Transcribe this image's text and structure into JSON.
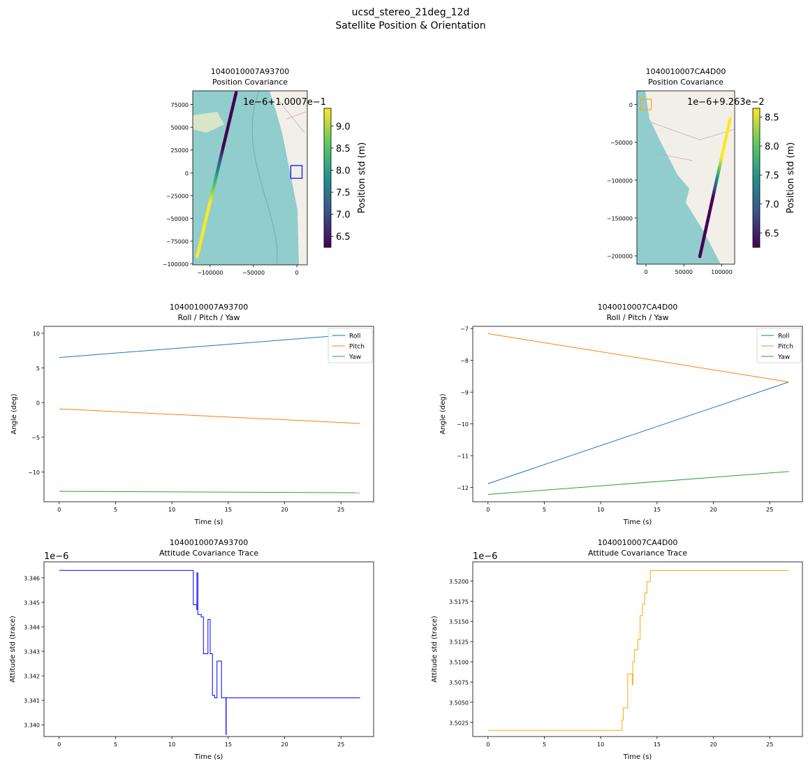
{
  "figure": {
    "title_line1": "ucsd_stereo_21deg_12d",
    "title_line2": "Satellite Position & Orientation"
  },
  "colors": {
    "roll": "#1f77b4",
    "pitch": "#ff7f0e",
    "yaw": "#2ca02c",
    "trace_a": "#0000ff",
    "trace_b": "#ffa500",
    "marker_a": "#0000ff",
    "marker_b": "#ffa500",
    "map_water": "#91cdcc",
    "map_land": "#f2efe9",
    "viridis": [
      "#440154",
      "#3b528b",
      "#21918c",
      "#5ec962",
      "#fde725"
    ]
  },
  "chart_data": [
    {
      "id": "map_a",
      "type": "scatter",
      "title": "1040010007A93700\nPosition Covariance",
      "xlim": [
        -120000,
        12000
      ],
      "ylim": [
        -101000,
        90000
      ],
      "xticks": [
        -100000,
        -50000,
        0
      ],
      "xtick_labels": [
        "−100000",
        "−50000",
        "0"
      ],
      "yticks": [
        -100000,
        -75000,
        -50000,
        -25000,
        0,
        25000,
        50000,
        75000
      ],
      "ytick_labels": [
        "−100000",
        "−75000",
        "−50000",
        "−25000",
        "0",
        "25000",
        "50000",
        "75000"
      ],
      "track_start": [
        -115000,
        -92000
      ],
      "track_end": [
        -70000,
        88000
      ],
      "track_color_t": [
        1.0,
        1.0,
        1.0,
        0.55,
        0.0,
        0.0,
        0.0
      ],
      "marker_box": [
        -7000,
        -6000,
        6000,
        8000
      ],
      "colorbar": {
        "label": "Position std (m)",
        "offset": "1e−6+1.0007e−1",
        "ticks": [
          6.5,
          7.0,
          7.5,
          8.0,
          8.5,
          9.0
        ],
        "tick_labels": [
          "6.5",
          "7.0",
          "7.5",
          "8.0",
          "8.5",
          "9.0"
        ],
        "range": [
          6.25,
          9.4
        ]
      }
    },
    {
      "id": "map_b",
      "type": "scatter",
      "title": "1040010007CA4D00\nPosition Covariance",
      "xlim": [
        -12000,
        117000
      ],
      "ylim": [
        -211000,
        18000
      ],
      "xticks": [
        0,
        50000,
        100000
      ],
      "xtick_labels": [
        "0",
        "50000",
        "100000"
      ],
      "yticks": [
        -200000,
        -150000,
        -100000,
        -50000,
        0
      ],
      "ytick_labels": [
        "−200000",
        "−150000",
        "−100000",
        "−50000",
        "0"
      ],
      "track_start": [
        71000,
        -201000
      ],
      "track_end": [
        111000,
        -19000
      ],
      "track_color_t": [
        0.0,
        0.0,
        0.0,
        0.0,
        0.5,
        1.0,
        1.0,
        1.0
      ],
      "marker_box": [
        -7000,
        -7000,
        7000,
        7000
      ],
      "colorbar": {
        "label": "Position std (m)",
        "offset": "1e−6+9.263e−2",
        "ticks": [
          6.5,
          7.0,
          7.5,
          8.0,
          8.5
        ],
        "tick_labels": [
          "6.5",
          "7.0",
          "7.5",
          "8.0",
          "8.5"
        ],
        "range": [
          6.25,
          8.65
        ]
      }
    },
    {
      "id": "rpy_a",
      "type": "line",
      "title": "1040010007A93700\nRoll / Pitch / Yaw",
      "xlabel": "Time (s)",
      "ylabel": "Angle (deg)",
      "xlim": [
        -1.35,
        27.9
      ],
      "ylim": [
        -14.3,
        11.0
      ],
      "xticks": [
        0,
        5,
        10,
        15,
        20,
        25
      ],
      "xtick_labels": [
        "0",
        "5",
        "10",
        "15",
        "20",
        "25"
      ],
      "yticks": [
        -10,
        -5,
        0,
        5,
        10
      ],
      "ytick_labels": [
        "−10",
        "−5",
        "0",
        "5",
        "10"
      ],
      "legend": "top-right",
      "series": [
        {
          "name": "Roll",
          "x": [
            0,
            26.7
          ],
          "values": [
            6.5,
            9.9
          ]
        },
        {
          "name": "Pitch",
          "x": [
            0,
            26.7
          ],
          "values": [
            -0.9,
            -3.0
          ]
        },
        {
          "name": "Yaw",
          "x": [
            0,
            26.7
          ],
          "values": [
            -12.8,
            -13.0
          ]
        }
      ]
    },
    {
      "id": "rpy_b",
      "type": "line",
      "title": "1040010007CA4D00\nRoll / Pitch / Yaw",
      "xlabel": "Time (s)",
      "ylabel": "Angle (deg)",
      "xlim": [
        -1.35,
        27.9
      ],
      "ylim": [
        -12.45,
        -6.93
      ],
      "xticks": [
        0,
        5,
        10,
        15,
        20,
        25
      ],
      "xtick_labels": [
        "0",
        "5",
        "10",
        "15",
        "20",
        "25"
      ],
      "yticks": [
        -12,
        -11,
        -10,
        -9,
        -8,
        -7
      ],
      "ytick_labels": [
        "−12",
        "−11",
        "−10",
        "−9",
        "−8",
        "−7"
      ],
      "legend": "top-right",
      "series": [
        {
          "name": "Roll",
          "x": [
            0,
            26.7
          ],
          "values": [
            -11.88,
            -8.68
          ]
        },
        {
          "name": "Pitch",
          "x": [
            0,
            26.7
          ],
          "values": [
            -7.16,
            -8.68
          ]
        },
        {
          "name": "Yaw",
          "x": [
            0,
            26.7
          ],
          "values": [
            -12.22,
            -11.5
          ]
        }
      ]
    },
    {
      "id": "trace_a",
      "type": "line",
      "title": "1040010007A93700\nAttitude Covariance Trace",
      "xlabel": "Time (s)",
      "ylabel": "Attitude std (trace)",
      "offset": "1e−6",
      "xlim": [
        -1.35,
        27.9
      ],
      "ylim": [
        3.33952,
        3.34665
      ],
      "xticks": [
        0,
        5,
        10,
        15,
        20,
        25
      ],
      "xtick_labels": [
        "0",
        "5",
        "10",
        "15",
        "20",
        "25"
      ],
      "yticks": [
        3.34,
        3.341,
        3.342,
        3.343,
        3.344,
        3.345,
        3.346
      ],
      "ytick_labels": [
        "3.340",
        "3.341",
        "3.342",
        "3.343",
        "3.344",
        "3.345",
        "3.346"
      ],
      "step": true,
      "series": [
        {
          "x": [
            0,
            11.9,
            11.9,
            12.2,
            12.2,
            12.22,
            12.22,
            12.3,
            12.3,
            12.6,
            12.6,
            12.8,
            12.8,
            13.2,
            13.2,
            13.4,
            13.4,
            13.6,
            13.6,
            13.8,
            13.8,
            14.0,
            14.0,
            14.4,
            14.4,
            14.8,
            14.8,
            14.82,
            14.82,
            26.7
          ],
          "values": [
            3.3463,
            3.3463,
            3.3449,
            3.3449,
            3.3447,
            3.3447,
            3.3462,
            3.3462,
            3.3445,
            3.3445,
            3.3444,
            3.3444,
            3.3429,
            3.3429,
            3.3443,
            3.3443,
            3.3429,
            3.3429,
            3.3412,
            3.3412,
            3.3411,
            3.3411,
            3.3426,
            3.3426,
            3.3411,
            3.3411,
            3.3396,
            3.3396,
            3.3411,
            3.3411
          ]
        }
      ]
    },
    {
      "id": "trace_b",
      "type": "line",
      "title": "1040010007CA4D00\nAttitude Covariance Trace",
      "xlabel": "Time (s)",
      "ylabel": "Attitude std (trace)",
      "offset": "1e−6",
      "xlim": [
        -1.35,
        27.9
      ],
      "ylim": [
        3.50075,
        3.52237
      ],
      "xticks": [
        0,
        5,
        10,
        15,
        20,
        25
      ],
      "xtick_labels": [
        "0",
        "5",
        "10",
        "15",
        "20",
        "25"
      ],
      "yticks": [
        3.5025,
        3.505,
        3.5075,
        3.51,
        3.5125,
        3.515,
        3.5175,
        3.52
      ],
      "ytick_labels": [
        "3.5025",
        "3.5050",
        "3.5075",
        "3.5100",
        "3.5125",
        "3.5150",
        "3.5175",
        "3.5200"
      ],
      "step": true,
      "series": [
        {
          "x": [
            0,
            11.9,
            11.9,
            12.0,
            12.0,
            12.4,
            12.4,
            12.8,
            12.8,
            12.85,
            12.85,
            13.0,
            13.0,
            13.3,
            13.3,
            13.5,
            13.5,
            13.7,
            13.7,
            13.9,
            13.9,
            14.1,
            14.1,
            14.4,
            14.4,
            14.7,
            14.7,
            26.7
          ],
          "values": [
            3.5015,
            3.5015,
            3.5028,
            3.5028,
            3.5043,
            3.5043,
            3.5085,
            3.5085,
            3.5072,
            3.5072,
            3.51,
            3.51,
            3.5115,
            3.5115,
            3.5128,
            3.5128,
            3.5157,
            3.5157,
            3.5171,
            3.5171,
            3.5185,
            3.5185,
            3.5199,
            3.5199,
            3.5213,
            3.5213,
            3.5213,
            3.5213
          ]
        }
      ]
    }
  ]
}
